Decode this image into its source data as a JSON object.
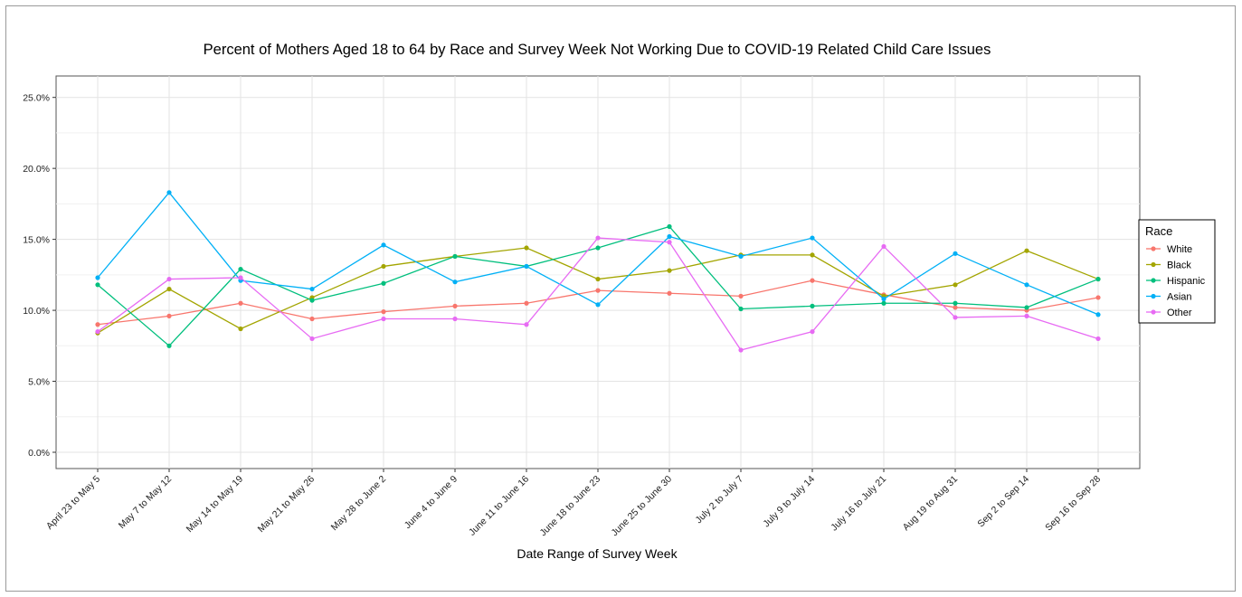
{
  "chart_data": {
    "type": "line",
    "title": "Percent of Mothers Aged 18 to 64 by Race and Survey Week Not Working Due to COVID-19 Related Child Care Issues",
    "xlabel": "Date Range of Survey Week",
    "ylabel": "",
    "ylim": [
      0,
      0.26
    ],
    "y_ticks": [
      0,
      0.05,
      0.1,
      0.15,
      0.2,
      0.25
    ],
    "y_tick_labels": [
      "0.0%",
      "5.0%",
      "10.0%",
      "15.0%",
      "20.0%",
      "25.0%"
    ],
    "grid": true,
    "legend_title": "Race",
    "legend_position": "right",
    "categories": [
      "April 23 to May 5",
      "May 7 to May 12",
      "May 14 to May 19",
      "May 21 to May 26",
      "May 28 to June 2",
      "June 4 to June 9",
      "June 11 to June 16",
      "June 18 to June 23",
      "June 25 to June 30",
      "July 2 to July 7",
      "July 9 to July 14",
      "July 16 to July 21",
      "Aug 19 to Aug 31",
      "Sep 2 to Sep 14",
      "Sep 16 to Sep 28"
    ],
    "series": [
      {
        "name": "White",
        "color": "#F8766D",
        "values": [
          0.09,
          0.096,
          0.105,
          0.094,
          0.099,
          0.103,
          0.105,
          0.114,
          0.112,
          0.11,
          0.121,
          0.111,
          0.102,
          0.1,
          0.109
        ]
      },
      {
        "name": "Black",
        "color": "#A3A500",
        "values": [
          0.084,
          0.115,
          0.087,
          0.109,
          0.131,
          0.138,
          0.144,
          0.122,
          0.128,
          0.139,
          0.139,
          0.11,
          0.118,
          0.142,
          0.122
        ]
      },
      {
        "name": "Hispanic",
        "color": "#00BF7D",
        "values": [
          0.118,
          0.075,
          0.129,
          0.107,
          0.119,
          0.138,
          0.131,
          0.144,
          0.159,
          0.101,
          0.103,
          0.105,
          0.105,
          0.102,
          0.122
        ]
      },
      {
        "name": "Asian",
        "color": "#00B0F6",
        "values": [
          0.123,
          0.183,
          0.121,
          0.115,
          0.146,
          0.12,
          0.131,
          0.104,
          0.152,
          0.138,
          0.151,
          0.108,
          0.14,
          0.118,
          0.097
        ]
      },
      {
        "name": "Other",
        "color": "#E76BF3",
        "values": [
          0.085,
          0.122,
          0.123,
          0.08,
          0.094,
          0.094,
          0.09,
          0.151,
          0.148,
          0.072,
          0.085,
          0.145,
          0.095,
          0.096,
          0.08
        ]
      }
    ]
  }
}
